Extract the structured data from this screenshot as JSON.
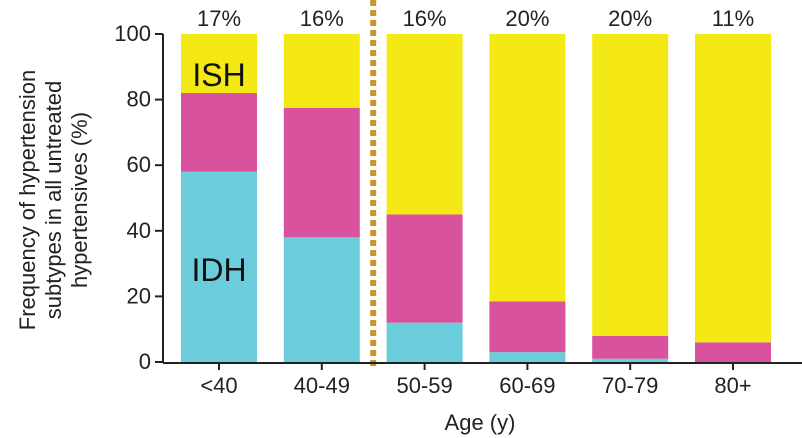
{
  "chart_data": {
    "type": "bar",
    "stacked": true,
    "categories": [
      "<40",
      "40-49",
      "50-59",
      "60-69",
      "70-79",
      "80+"
    ],
    "series": [
      {
        "name": "IDH",
        "color": "#6bcddb",
        "values": [
          58,
          38,
          12,
          3,
          1,
          0
        ]
      },
      {
        "name": "",
        "color": "#d9529e",
        "values": [
          24,
          39.5,
          33,
          15.5,
          7,
          6
        ]
      },
      {
        "name": "ISH",
        "color": "#f5e915",
        "values": [
          18,
          22.5,
          55,
          81.5,
          92,
          94
        ]
      }
    ],
    "top_labels": [
      "17%",
      "16%",
      "16%",
      "20%",
      "20%",
      "11%"
    ],
    "ylim": [
      0,
      100
    ],
    "yticks": [
      "0",
      "20",
      "40",
      "60",
      "80",
      "100"
    ],
    "xlabel": "Age (y)",
    "ylabel_lines": [
      "Frequency of hypertension",
      "subtypes in all untreated",
      "hypertensives (%)"
    ],
    "divider": {
      "after_category": "40-49",
      "color": "#c8962a"
    },
    "annotations": [
      "ISH",
      "IDH"
    ]
  }
}
